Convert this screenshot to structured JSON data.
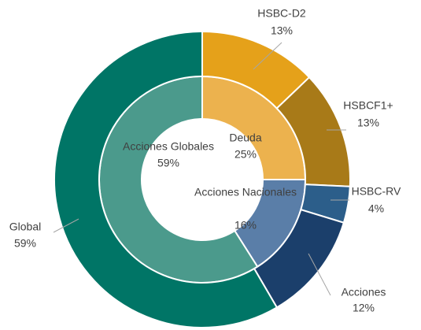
{
  "chart_data": {
    "type": "donut",
    "series": [
      {
        "categories": [
          "Deuda",
          "Acciones Nacionales",
          "Acciones Globales"
        ],
        "values": [
          25,
          16,
          59
        ],
        "value_labels": [
          "25%",
          "16%",
          "59%"
        ],
        "colors": [
          "#ecb24e",
          "#5a7ea8",
          "#4b9a8c"
        ]
      },
      {
        "categories": [
          "HSBC-D2",
          "HSBCF1+",
          "HSBC-RV",
          "Acciones",
          "Global"
        ],
        "values": [
          13,
          13,
          4,
          12,
          59
        ],
        "value_labels": [
          "13%",
          "13%",
          "4%",
          "12%",
          "59%"
        ],
        "colors": [
          "#e5a11a",
          "#a87a18",
          "#2c5e8a",
          "#1b3f6b",
          "#007566"
        ]
      }
    ]
  }
}
